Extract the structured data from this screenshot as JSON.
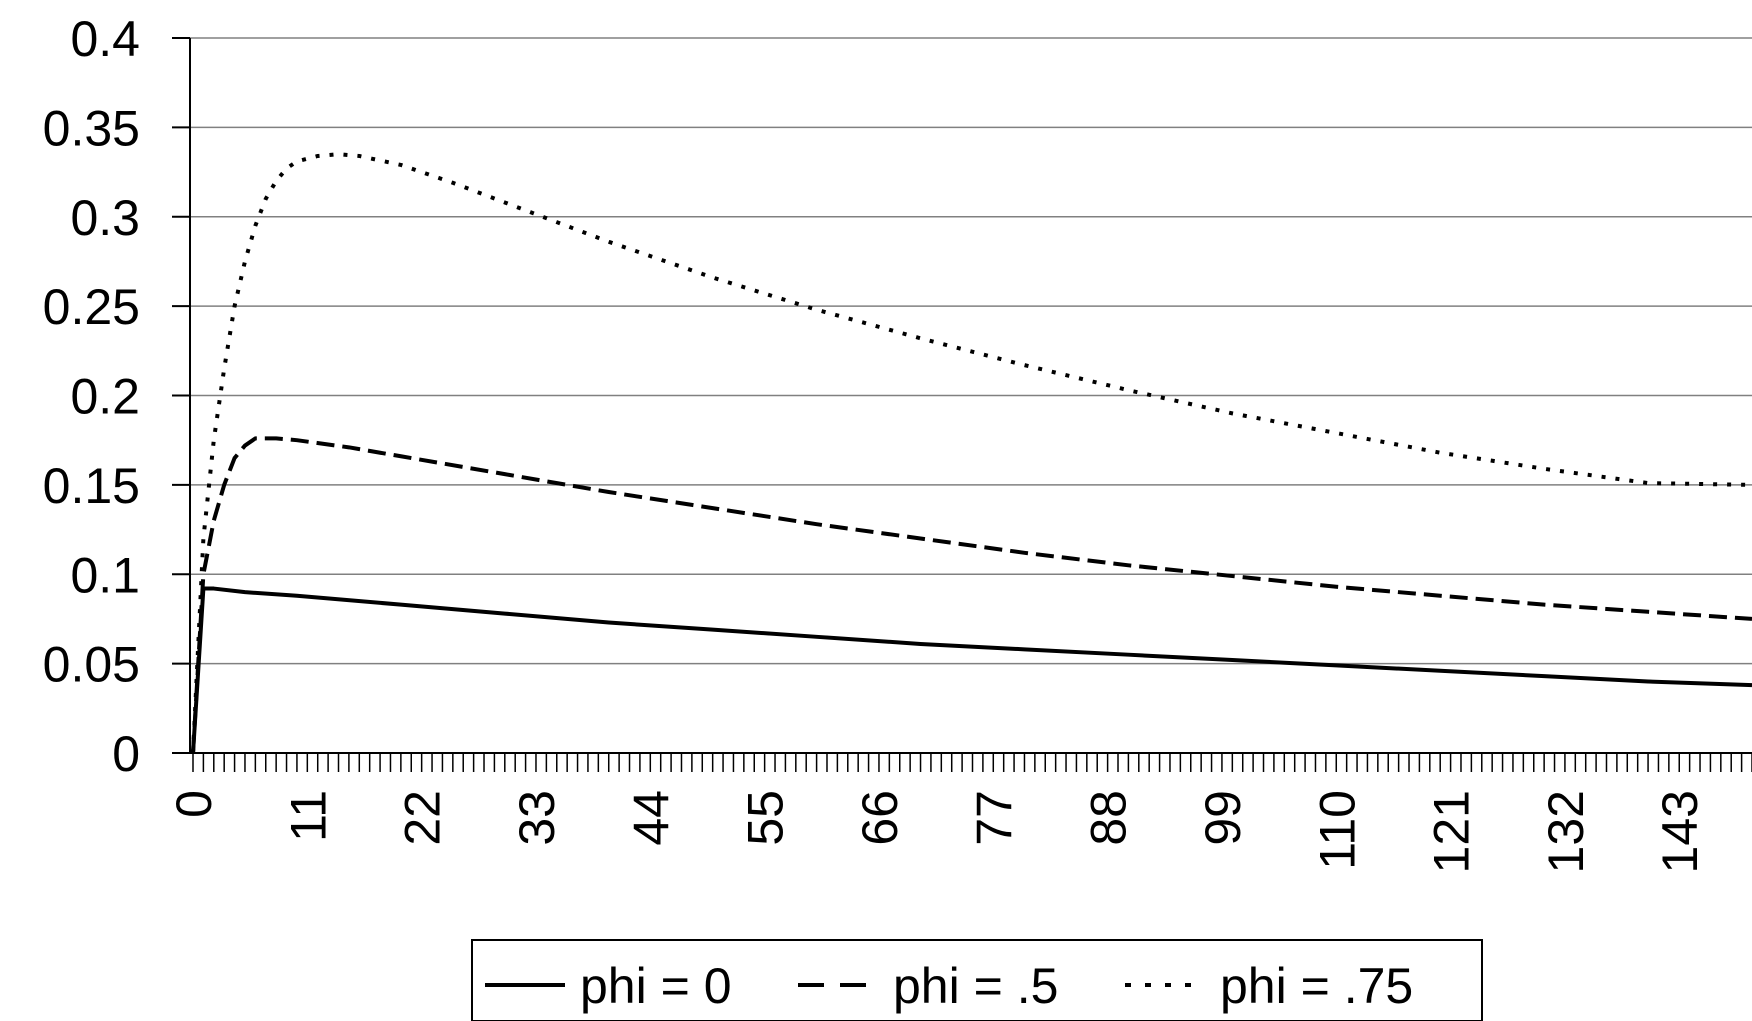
{
  "chart_data": {
    "type": "line",
    "ylim": [
      0,
      0.4
    ],
    "xlim": [
      0,
      150
    ],
    "y_ticks": [
      "0",
      "0.05",
      "0.1",
      "0.15",
      "0.2",
      "0.25",
      "0.3",
      "0.35",
      "0.4"
    ],
    "x_ticks": [
      "0",
      "11",
      "22",
      "33",
      "44",
      "55",
      "66",
      "77",
      "88",
      "99",
      "110",
      "121",
      "132",
      "143"
    ],
    "grid": "horizontal",
    "legend_position": "bottom",
    "series": [
      {
        "name": "phi = 0",
        "style": "solid",
        "x": [
          0,
          1,
          2,
          5,
          10,
          20,
          30,
          40,
          50,
          60,
          70,
          80,
          90,
          100,
          110,
          120,
          130,
          140,
          150
        ],
        "y": [
          0,
          0.092,
          0.092,
          0.09,
          0.088,
          0.083,
          0.078,
          0.073,
          0.069,
          0.065,
          0.061,
          0.058,
          0.055,
          0.052,
          0.049,
          0.046,
          0.043,
          0.04,
          0.038
        ]
      },
      {
        "name": "phi = .5",
        "style": "dashed",
        "x": [
          0,
          1,
          2,
          3,
          4,
          5,
          6,
          8,
          10,
          15,
          20,
          30,
          40,
          50,
          60,
          70,
          80,
          90,
          100,
          110,
          120,
          130,
          140,
          150
        ],
        "y": [
          0,
          0.1,
          0.13,
          0.15,
          0.165,
          0.172,
          0.176,
          0.176,
          0.175,
          0.171,
          0.166,
          0.156,
          0.146,
          0.137,
          0.128,
          0.12,
          0.112,
          0.105,
          0.099,
          0.093,
          0.088,
          0.083,
          0.079,
          0.075
        ]
      },
      {
        "name": "phi = .75",
        "style": "dotted",
        "x": [
          0,
          1,
          2,
          3,
          4,
          5,
          6,
          7,
          8,
          9,
          10,
          12,
          14,
          16,
          20,
          25,
          30,
          40,
          50,
          60,
          70,
          80,
          90,
          100,
          110,
          120,
          130,
          140,
          150
        ],
        "y": [
          0,
          0.12,
          0.175,
          0.215,
          0.25,
          0.275,
          0.295,
          0.31,
          0.32,
          0.327,
          0.331,
          0.334,
          0.335,
          0.334,
          0.329,
          0.319,
          0.308,
          0.286,
          0.266,
          0.248,
          0.232,
          0.217,
          0.203,
          0.19,
          0.179,
          0.168,
          0.159,
          0.151,
          0.15
        ]
      }
    ]
  }
}
